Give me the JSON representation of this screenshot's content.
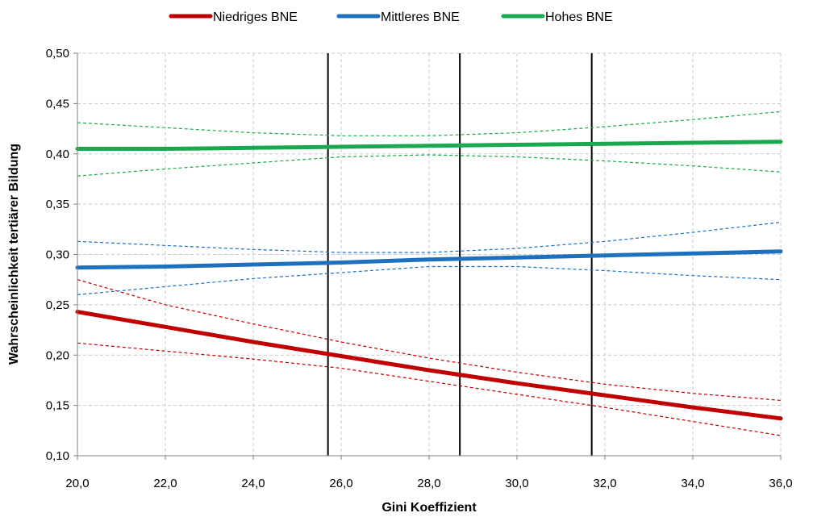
{
  "chart_data": {
    "type": "line",
    "xlabel": "Gini Koeffizient",
    "ylabel": "Wahrscheinlichkeit tertiärer Bildung",
    "xlim": [
      20,
      36
    ],
    "ylim": [
      0.1,
      0.5
    ],
    "x_ticks": [
      "20,0",
      "22,0",
      "24,0",
      "26,0",
      "28,0",
      "30,0",
      "32,0",
      "34,0",
      "36,0"
    ],
    "y_ticks": [
      "0,10",
      "0,15",
      "0,20",
      "0,25",
      "0,30",
      "0,35",
      "0,40",
      "0,45",
      "0,50"
    ],
    "x_tick_values": [
      20,
      22,
      24,
      26,
      28,
      30,
      32,
      34,
      36
    ],
    "y_tick_values": [
      0.1,
      0.15,
      0.2,
      0.25,
      0.3,
      0.35,
      0.4,
      0.45,
      0.5
    ],
    "grid": true,
    "legend_position": "top",
    "vertical_lines": [
      25.7,
      28.7,
      31.7
    ],
    "x": [
      20,
      22,
      24,
      26,
      28,
      30,
      32,
      34,
      36
    ],
    "series": [
      {
        "name": "Niedriges BNE",
        "color": "#c00000",
        "values": [
          0.243,
          0.228,
          0.213,
          0.199,
          0.185,
          0.172,
          0.16,
          0.148,
          0.137
        ],
        "ci_upper": [
          0.275,
          0.25,
          0.231,
          0.213,
          0.197,
          0.183,
          0.171,
          0.162,
          0.155
        ],
        "ci_lower": [
          0.212,
          0.204,
          0.196,
          0.187,
          0.174,
          0.161,
          0.148,
          0.134,
          0.12
        ]
      },
      {
        "name": "Mittleres BNE",
        "color": "#1f6fbf",
        "values": [
          0.287,
          0.288,
          0.29,
          0.292,
          0.295,
          0.297,
          0.299,
          0.301,
          0.303
        ],
        "ci_upper": [
          0.313,
          0.309,
          0.305,
          0.302,
          0.302,
          0.306,
          0.313,
          0.322,
          0.332
        ],
        "ci_lower": [
          0.26,
          0.268,
          0.276,
          0.282,
          0.288,
          0.288,
          0.284,
          0.279,
          0.275
        ]
      },
      {
        "name": "Hohes BNE",
        "color": "#1aa84f",
        "values": [
          0.405,
          0.405,
          0.406,
          0.407,
          0.408,
          0.409,
          0.41,
          0.411,
          0.412
        ],
        "ci_upper": [
          0.431,
          0.426,
          0.421,
          0.418,
          0.418,
          0.421,
          0.427,
          0.434,
          0.442
        ],
        "ci_lower": [
          0.378,
          0.385,
          0.391,
          0.397,
          0.399,
          0.397,
          0.393,
          0.388,
          0.382
        ]
      }
    ]
  }
}
